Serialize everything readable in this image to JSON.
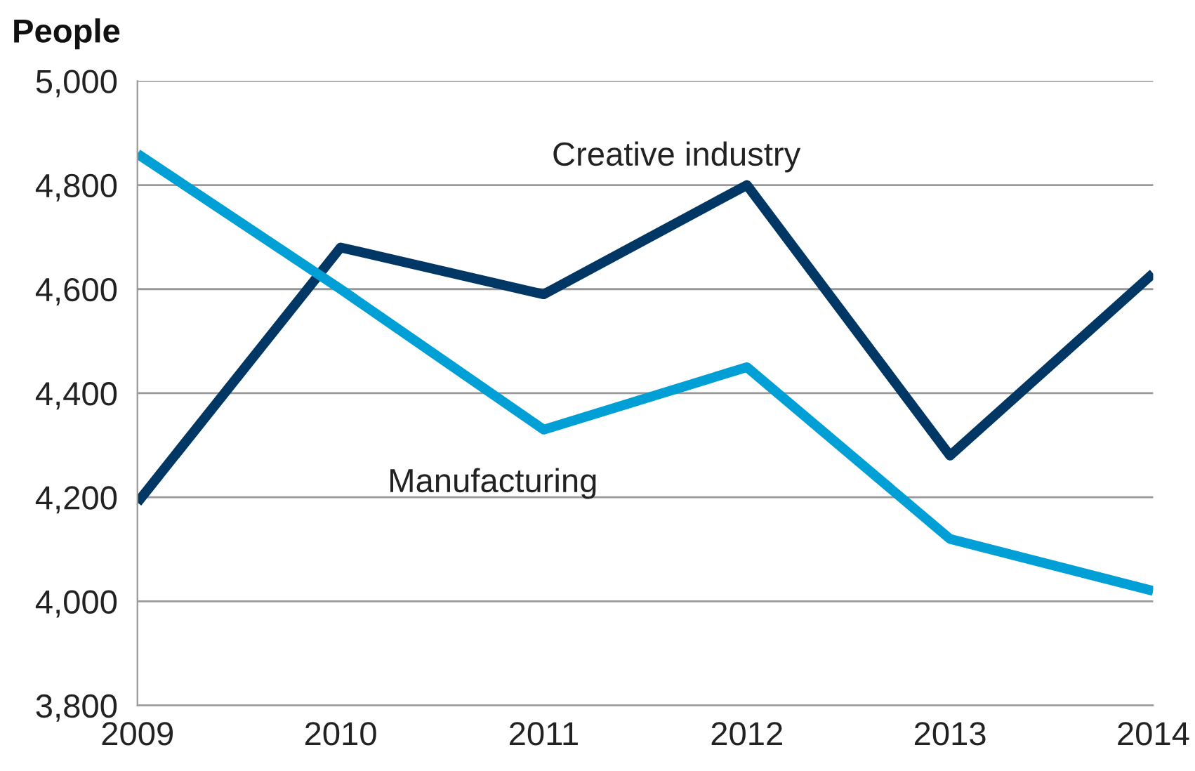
{
  "chart_data": {
    "type": "line",
    "ylabel": "People",
    "x": [
      2009,
      2010,
      2011,
      2012,
      2013,
      2014
    ],
    "xlim": [
      2009,
      2014
    ],
    "xticks": [
      2009,
      2010,
      2011,
      2012,
      2013,
      2014
    ],
    "ylim": [
      3800,
      5000
    ],
    "yticks": [
      {
        "value": 3800,
        "label": "3,800"
      },
      {
        "value": 4000,
        "label": "4,000"
      },
      {
        "value": 4200,
        "label": "4,200"
      },
      {
        "value": 4400,
        "label": "4,400"
      },
      {
        "value": 4600,
        "label": "4,600"
      },
      {
        "value": 4800,
        "label": "4,800"
      },
      {
        "value": 5000,
        "label": "5,000"
      }
    ],
    "grid": "y",
    "legend": false,
    "line_style": "solid",
    "marker": "none",
    "series": [
      {
        "name": "Creative industry",
        "color": "#003764",
        "values": [
          4190,
          4680,
          4590,
          4800,
          4280,
          4630
        ]
      },
      {
        "name": "Manufacturing",
        "color": "#009fd6",
        "values": [
          4860,
          4600,
          4330,
          4450,
          4120,
          4020
        ]
      }
    ]
  }
}
